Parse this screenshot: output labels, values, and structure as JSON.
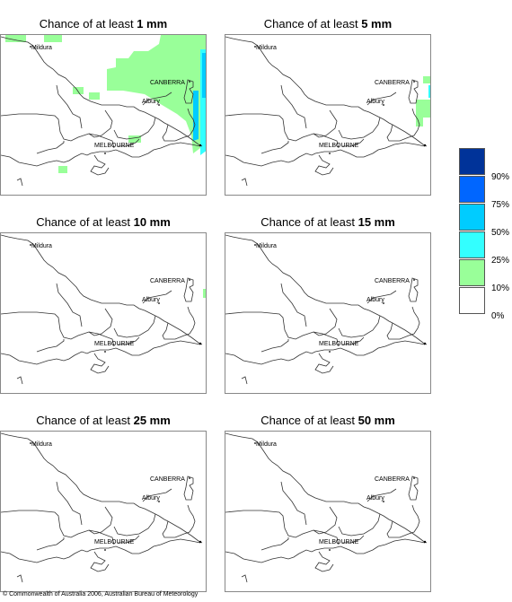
{
  "panels": [
    {
      "prefix": "Chance of at least",
      "amount": "1 mm"
    },
    {
      "prefix": "Chance of at least",
      "amount": "5 mm"
    },
    {
      "prefix": "Chance of at least",
      "amount": "10 mm"
    },
    {
      "prefix": "Chance of at least",
      "amount": "15 mm"
    },
    {
      "prefix": "Chance of at least",
      "amount": "25 mm"
    },
    {
      "prefix": "Chance of at least",
      "amount": "50 mm"
    }
  ],
  "cities": {
    "mildura": "Mildura",
    "canberra": "CANBERRA",
    "albury": "Albury",
    "melbourne": "MELBOURNE"
  },
  "legend": {
    "labels": [
      "90%",
      "75%",
      "50%",
      "25%",
      "10%",
      "0%"
    ],
    "colors": [
      "#003399",
      "#0066ff",
      "#00ccff",
      "#33ffff",
      "#99ff99",
      "#ffffff"
    ]
  },
  "coverage_colors": {
    "10-25": "#99ff99",
    "25-50": "#33ffff",
    "50-75": "#00ccff"
  },
  "copyright": "© Commonwealth of Australia 2006, Australian Bureau of Meteorology"
}
